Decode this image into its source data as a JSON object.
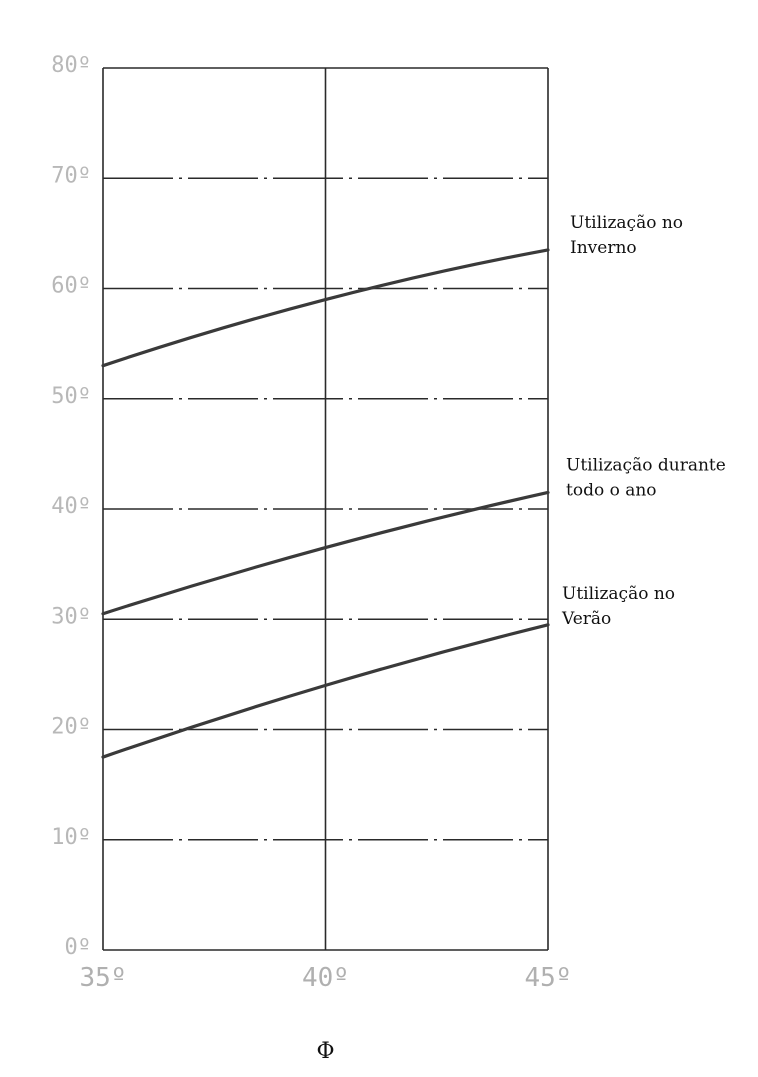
{
  "chart_data": {
    "type": "line",
    "x": [
      35,
      40,
      45
    ],
    "xlim": [
      35,
      45
    ],
    "ylim": [
      0,
      80
    ],
    "x_ticks": [
      35,
      40,
      45
    ],
    "x_tick_labels": [
      "35º",
      "40º",
      "45º"
    ],
    "y_ticks": [
      0,
      10,
      20,
      30,
      40,
      50,
      60,
      70,
      80
    ],
    "y_tick_labels": [
      "0º",
      "10º",
      "20º",
      "30º",
      "40º",
      "50º",
      "60º",
      "70º",
      "80º"
    ],
    "xlabel": "Φ",
    "ylabel": "",
    "title": "",
    "grid": true,
    "series": [
      {
        "name": "Utilização no Inverno",
        "label_lines": [
          "Utilização no",
          "Inverno"
        ],
        "values": [
          53,
          59,
          63.5
        ]
      },
      {
        "name": "Utilização durante todo o ano",
        "label_lines": [
          "Utilização durante",
          "todo o ano"
        ],
        "values": [
          30.5,
          36.5,
          41.5
        ]
      },
      {
        "name": "Utilização no Verão",
        "label_lines": [
          "Utilização no",
          "Verão"
        ],
        "values": [
          17.5,
          24,
          29.5
        ]
      }
    ],
    "line_color": "#3a3a3a"
  }
}
